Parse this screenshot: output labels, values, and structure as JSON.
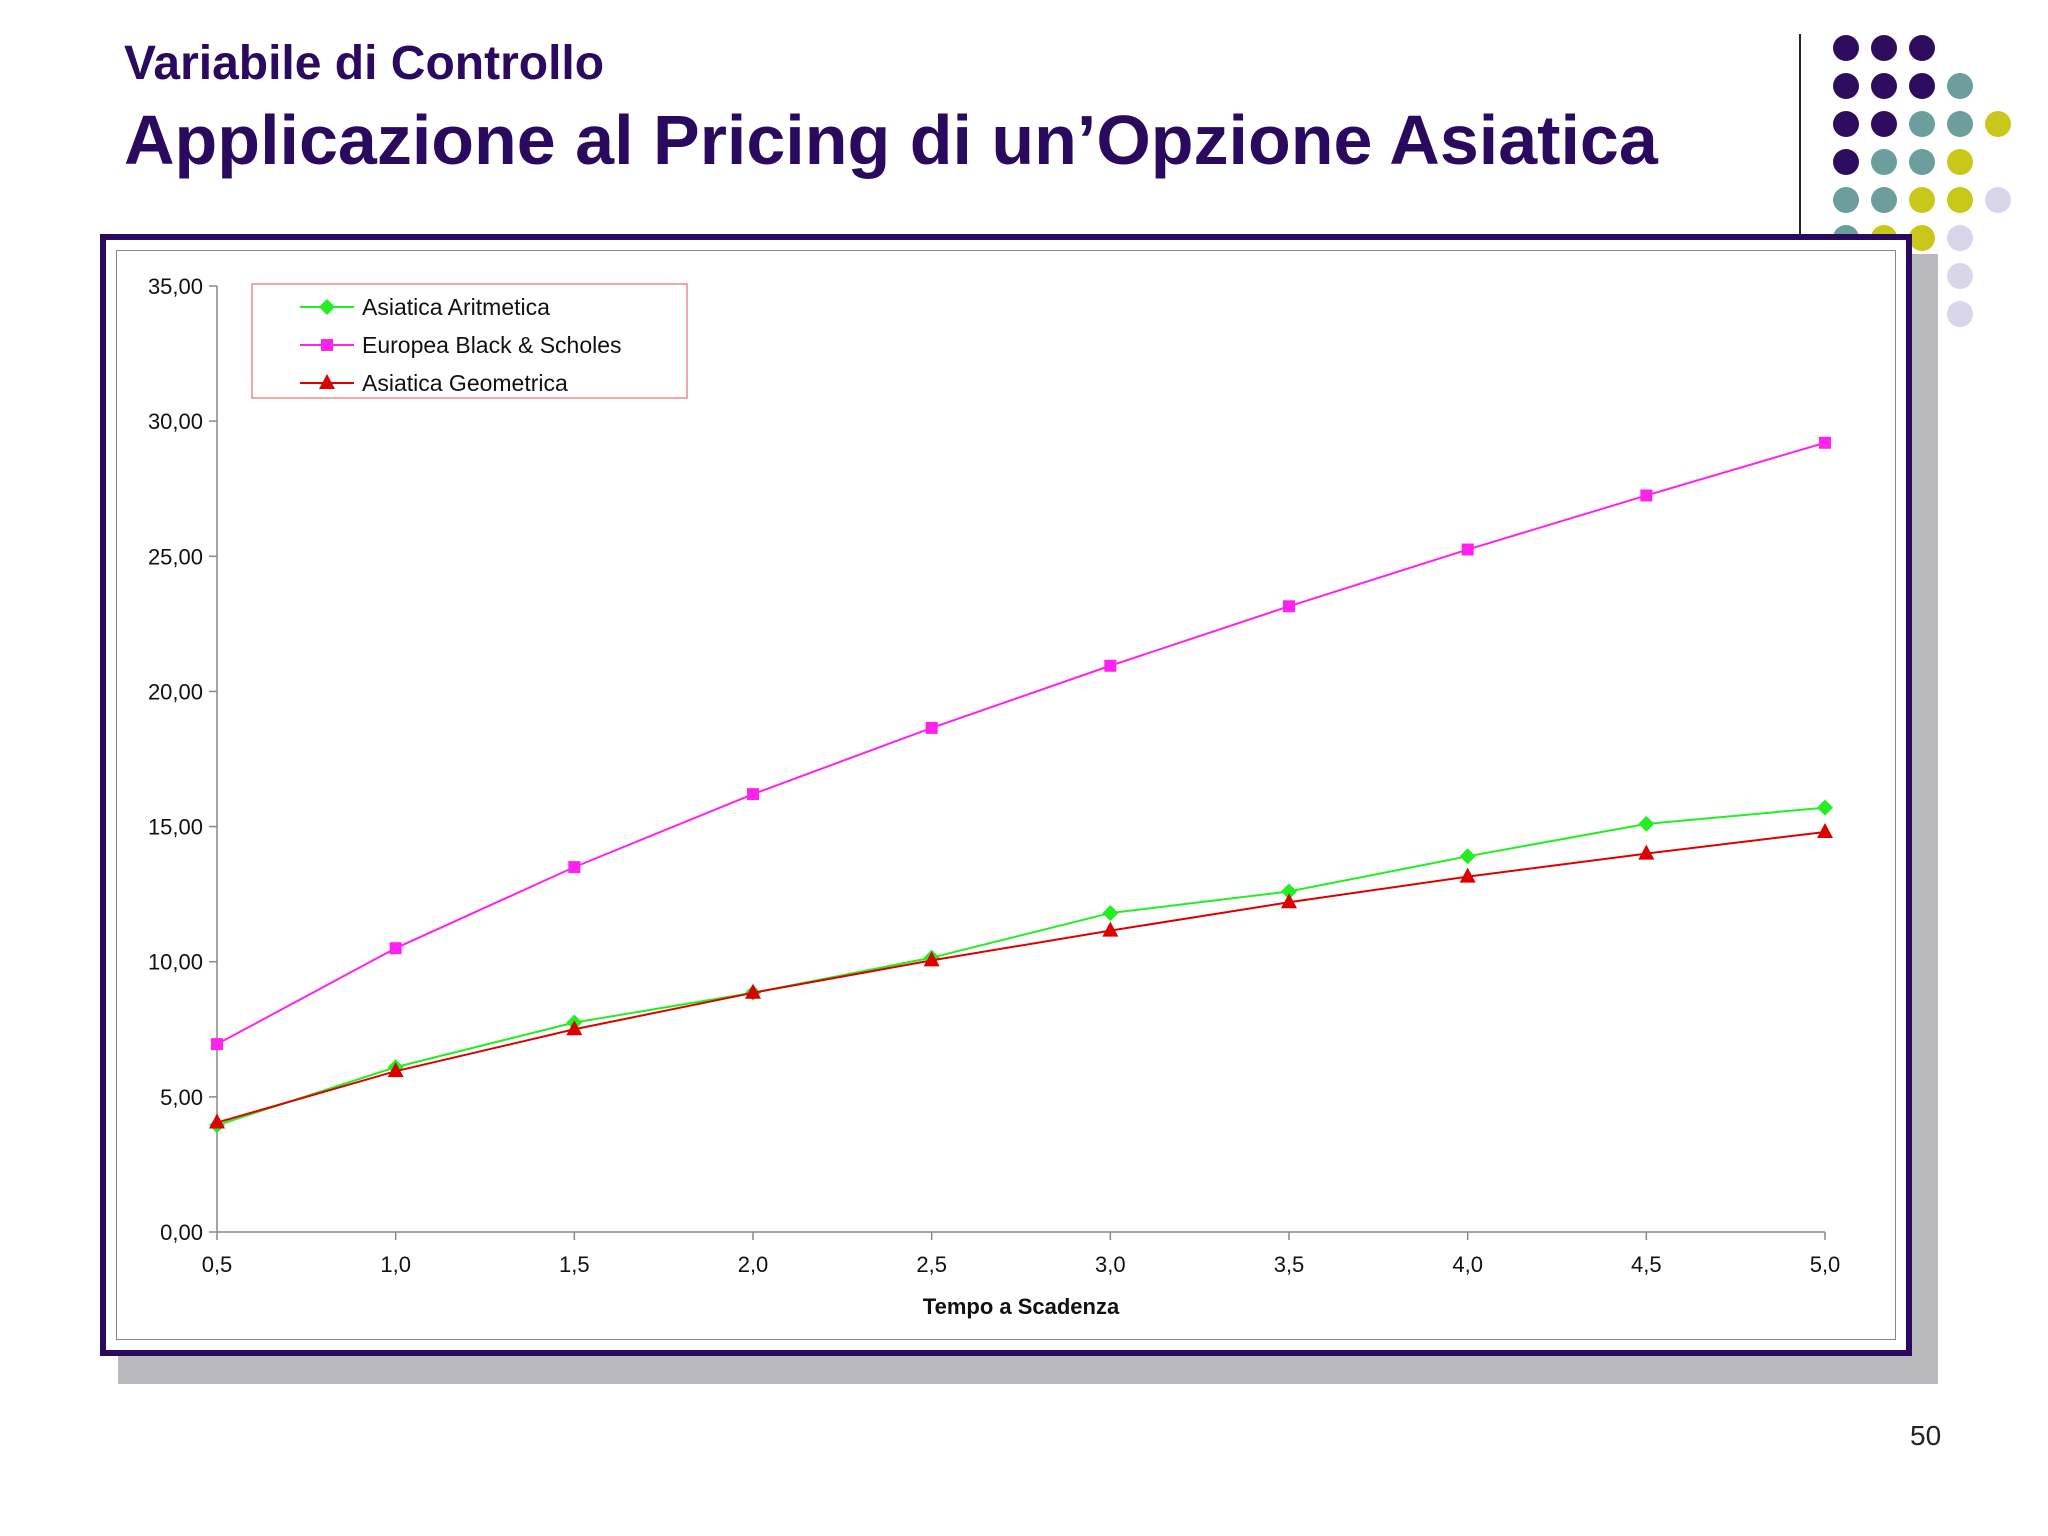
{
  "header": {
    "subtitle": "Variabile di Controllo",
    "title": "Applicazione al Pricing di un’Opzione Asiatica"
  },
  "page_number": "50",
  "decoration": {
    "dot_colors": {
      "purple": "#2e0d5e",
      "teal": "#6b9e9c",
      "olive": "#c9c71a",
      "lavender": "#d8d6e8"
    },
    "frame_color": "#2a0a5e"
  },
  "chart_data": {
    "type": "line",
    "x": [
      "0,5",
      "1,0",
      "1,5",
      "2,0",
      "2,5",
      "3,0",
      "3,5",
      "4,0",
      "4,5",
      "5,0"
    ],
    "x_values": [
      0.5,
      1.0,
      1.5,
      2.0,
      2.5,
      3.0,
      3.5,
      4.0,
      4.5,
      5.0
    ],
    "xlabel": "Tempo a Scadenza",
    "ylabel": "",
    "ylim": [
      0,
      35
    ],
    "yticks": [
      "0,00",
      "5,00",
      "10,00",
      "15,00",
      "20,00",
      "25,00",
      "30,00",
      "35,00"
    ],
    "ytick_values": [
      0,
      5,
      10,
      15,
      20,
      25,
      30,
      35
    ],
    "grid": false,
    "legend_position": "top-left",
    "series": [
      {
        "name": "Asiatica Aritmetica",
        "color": "#22ee22",
        "marker": "diamond",
        "values": [
          3.95,
          6.1,
          7.75,
          8.85,
          10.15,
          11.8,
          12.6,
          13.9,
          15.1,
          15.7
        ]
      },
      {
        "name": "Europea Black & Scholes",
        "color": "#ff22ee",
        "marker": "square",
        "values": [
          6.95,
          10.5,
          13.5,
          16.2,
          18.65,
          20.95,
          23.15,
          25.25,
          27.25,
          29.2
        ]
      },
      {
        "name": "Asiatica Geometrica",
        "color": "#dd0000",
        "marker": "triangle",
        "values": [
          4.05,
          5.95,
          7.5,
          8.85,
          10.05,
          11.15,
          12.2,
          13.15,
          14.0,
          14.8
        ]
      }
    ]
  }
}
